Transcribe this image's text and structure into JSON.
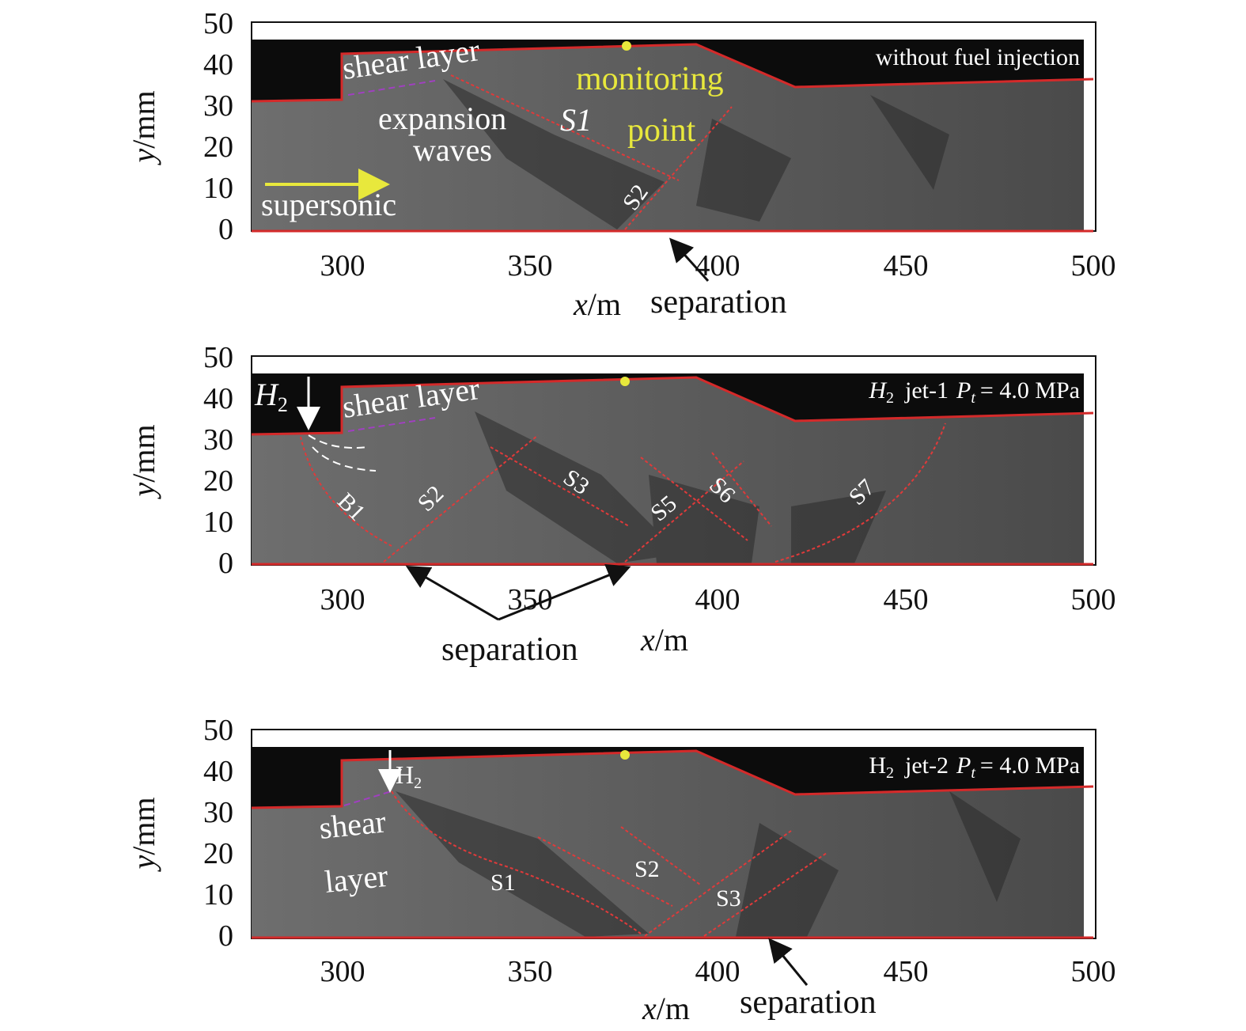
{
  "figure": {
    "x_label_var": "x",
    "x_label_unit": "/m",
    "y_label_var": "y",
    "y_label_unit": "/mm",
    "x_ticks": [
      "300",
      "350",
      "400",
      "450",
      "500"
    ],
    "y_ticks": [
      "0",
      "10",
      "20",
      "30",
      "40",
      "50"
    ],
    "colors": {
      "wall": "#d42a2a",
      "shock": "#e03a3a",
      "highlight": "#e8e83c",
      "shear": "#a040c0",
      "background_flow": "#6b6b6b"
    }
  },
  "panels": [
    {
      "case_label": "without fuel injection",
      "annotations": {
        "shear": "shear layer",
        "expansion": "expansion",
        "waves": "waves",
        "s1": "S1",
        "supersonic": "supersonic",
        "monitoring": "monitoring",
        "point": "point",
        "s2": "S2",
        "separation": "separation"
      }
    },
    {
      "case_label": {
        "h": "H",
        "sub": "2",
        "jet": "jet-1",
        "p": "P",
        "psub": "t",
        "val": "= 4.0 MPa"
      },
      "annotations": {
        "h2_h": "H",
        "h2_sub": "2",
        "shear": "shear layer",
        "b1": "B1",
        "s2": "S2",
        "s3": "S3",
        "s5": "S5",
        "s6": "S6",
        "s7": "S7",
        "separation": "separation"
      }
    },
    {
      "case_label": {
        "h": "H",
        "sub": "2",
        "jet": "jet-2",
        "p": "P",
        "psub": "t",
        "val": "= 4.0 MPa"
      },
      "annotations": {
        "h2_h": "H",
        "h2_sub": "2",
        "shear1": "shear",
        "shear2": "layer",
        "s1": "S1",
        "s2": "S2",
        "s3": "S3",
        "separation": "separation"
      }
    }
  ]
}
